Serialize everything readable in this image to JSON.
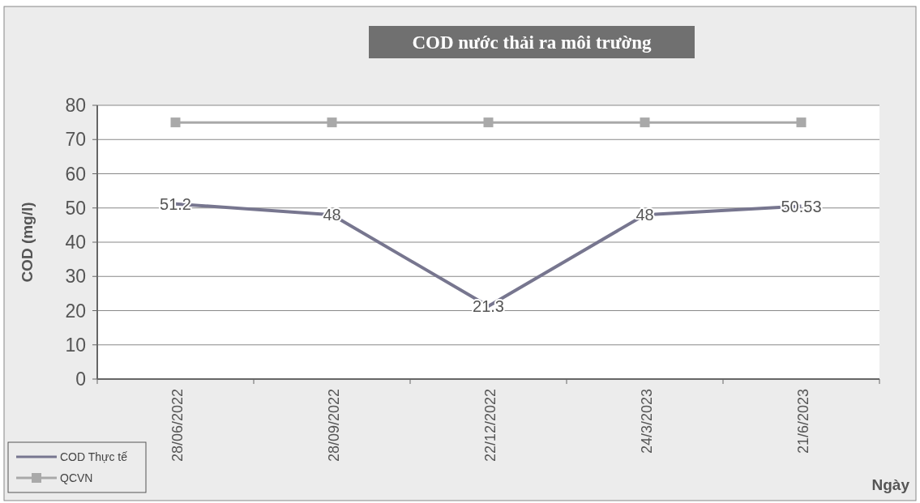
{
  "chart_data": {
    "type": "line",
    "title": "COD nước  thải ra môi trường",
    "xlabel": "Ngày",
    "ylabel": "COD (mg/l)",
    "categories": [
      "28/06/2022",
      "28/09/2022",
      "22/12/2022",
      "24/3/2023",
      "21/6/2023"
    ],
    "series": [
      {
        "name": "COD Thực tế",
        "color": "#77768f",
        "values": [
          51.2,
          48,
          21.3,
          48,
          50.53
        ],
        "marker": "none",
        "value_labels": [
          "51.2",
          "48",
          "21.3",
          "48",
          "50.53"
        ]
      },
      {
        "name": "QCVN",
        "color": "#a9a9a9",
        "values": [
          75,
          75,
          75,
          75,
          75
        ],
        "marker": "square"
      }
    ],
    "ylim": [
      0,
      80
    ],
    "yticks": [
      0,
      10,
      20,
      30,
      40,
      50,
      60,
      70,
      80
    ],
    "grid": "y",
    "legend": "bottom left"
  }
}
